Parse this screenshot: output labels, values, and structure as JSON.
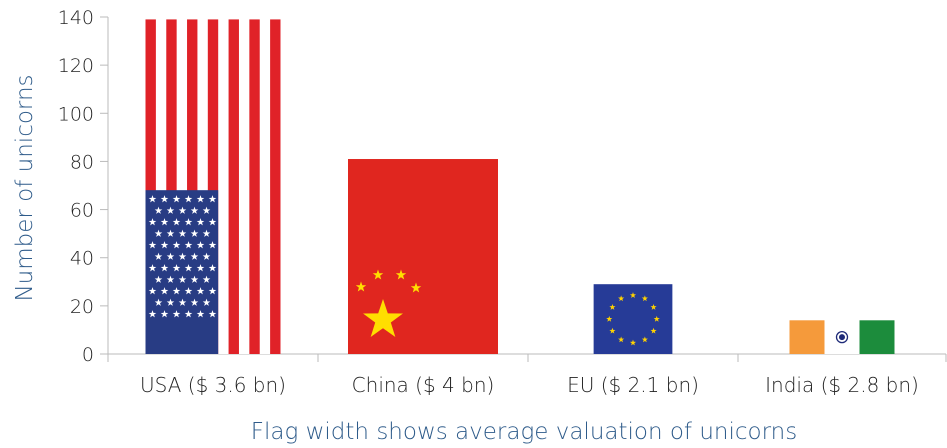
{
  "chart_data": {
    "type": "bar",
    "categories": [
      "USA ($ 3.6 bn)",
      "China ($ 4 bn)",
      "EU ($ 2.1 bn)",
      "India ($ 2.8 bn)"
    ],
    "values": [
      139,
      81,
      29,
      14
    ],
    "bar_width_values_bn": [
      3.6,
      4,
      2.1,
      2.8
    ],
    "bar_fills": [
      "usa-flag",
      "china-flag",
      "eu-flag",
      "india-flag"
    ],
    "ylabel": "Number of unicorns",
    "xlabel": "Flag width shows average valuation of unicorns",
    "ylim": [
      0,
      140
    ],
    "yticks": [
      0,
      20,
      40,
      60,
      80,
      100,
      120,
      140
    ],
    "grid": false
  },
  "colors": {
    "axis_title": "#2e5b8a",
    "axis_line": "#bbbbbb",
    "us_red": "#e02228",
    "us_blue": "#283c84",
    "china_red": "#e0261f",
    "china_yellow": "#ffde00",
    "eu_blue": "#263b97",
    "eu_gold": "#ffd200",
    "india_saffron": "#f59a3b",
    "india_green": "#1c8c3c",
    "india_navy": "#1e2a78"
  }
}
